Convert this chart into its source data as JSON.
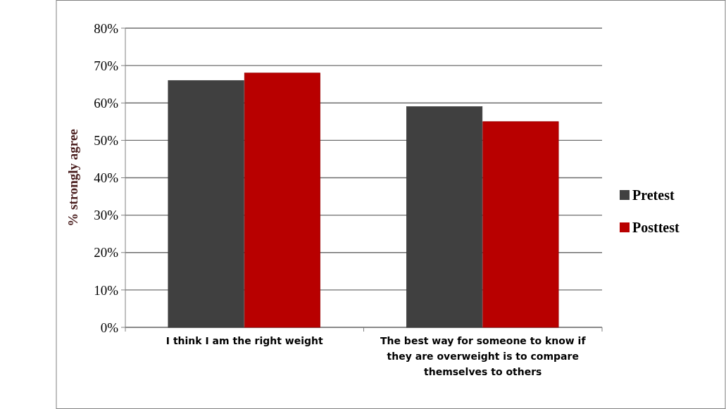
{
  "chart_data": {
    "type": "bar",
    "ylabel": "% strongly agree",
    "categories": [
      "I think I am the right weight",
      "The best way for someone to know if they are overweight is to compare themselves to others"
    ],
    "series": [
      {
        "name": "Pretest",
        "color": "#404040",
        "values": [
          66,
          59
        ]
      },
      {
        "name": "Posttest",
        "color": "#b80000",
        "values": [
          68,
          55
        ]
      }
    ],
    "ylim": [
      0,
      80
    ],
    "yticks": [
      {
        "value": 0,
        "label": "0%"
      },
      {
        "value": 10,
        "label": "10%"
      },
      {
        "value": 20,
        "label": "20%"
      },
      {
        "value": 30,
        "label": "30%"
      },
      {
        "value": 40,
        "label": "40%"
      },
      {
        "value": 50,
        "label": "50%"
      },
      {
        "value": 60,
        "label": "60%"
      },
      {
        "value": 70,
        "label": "70%"
      },
      {
        "value": 80,
        "label": "80%"
      }
    ],
    "grid": "y",
    "legend": "right"
  }
}
